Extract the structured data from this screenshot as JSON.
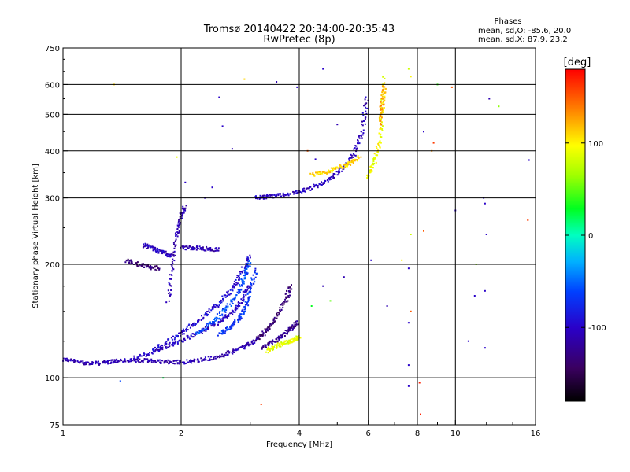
{
  "chart_data": {
    "type": "scatter",
    "title": "Tromsø 20140422 20:34:00-20:35:43",
    "subtitle": "RwPretec (8p)",
    "xlabel": "Frequency [MHz]",
    "ylabel": "Stationary phase Virtual Height [km]",
    "x_scale": "log",
    "y_scale": "log",
    "xlim": [
      1,
      16
    ],
    "ylim": [
      75,
      750
    ],
    "x_ticks": [
      1,
      2,
      4,
      6,
      8,
      10,
      16
    ],
    "x_tick_labels": [
      "1",
      "2",
      "4",
      "6",
      "8",
      "10",
      "16"
    ],
    "x_grid": [
      2,
      4,
      6,
      8,
      10
    ],
    "y_ticks": [
      75,
      100,
      200,
      300,
      400,
      500,
      600,
      750
    ],
    "y_tick_labels": [
      "75",
      "100",
      "200",
      "300",
      "400",
      "500",
      "600",
      "750"
    ],
    "y_grid": [
      100,
      200,
      300,
      400,
      500,
      600
    ],
    "grid": true,
    "stats": {
      "heading": "Phases",
      "line_o": "mean, sd,O: -85.6, 20.0",
      "line_x": "mean, sd,X:  87.9, 23.2"
    },
    "colorbar": {
      "label": "[deg]",
      "range": [
        -180,
        180
      ],
      "ticks": [
        100,
        0,
        -100
      ],
      "tick_labels": [
        "100",
        "0",
        "-100"
      ]
    },
    "traces": [
      {
        "x": [
          1.0,
          1.1,
          1.2,
          1.3,
          1.4,
          1.55,
          1.7,
          1.85,
          2.0,
          2.2,
          2.45,
          2.7,
          2.95,
          3.1
        ],
        "y": [
          112,
          110,
          109,
          110,
          111,
          111,
          111,
          110,
          110,
          111,
          113,
          117,
          122,
          126
        ],
        "phase": -110
      },
      {
        "x": [
          1.5,
          1.7,
          1.9,
          2.1,
          2.3,
          2.5,
          2.7,
          2.85,
          3.0
        ],
        "y": [
          112,
          117,
          123,
          128,
          134,
          141,
          149,
          160,
          178
        ],
        "phase": -100
      },
      {
        "x": [
          1.7,
          1.9,
          2.1,
          2.3,
          2.5,
          2.7,
          2.85,
          3.0
        ],
        "y": [
          118,
          127,
          136,
          146,
          158,
          172,
          190,
          210
        ],
        "phase": -95
      },
      {
        "x": [
          2.2,
          2.4,
          2.6,
          2.8,
          2.9,
          3.0
        ],
        "y": [
          131,
          140,
          152,
          168,
          185,
          205
        ],
        "phase": -60
      },
      {
        "x": [
          2.5,
          2.65,
          2.8,
          2.9,
          3.0,
          3.1
        ],
        "y": [
          130,
          136,
          143,
          152,
          168,
          196
        ],
        "phase": -70
      },
      {
        "x": [
          1.85,
          1.9,
          1.95,
          2.0,
          2.05
        ],
        "y": [
          160,
          200,
          240,
          270,
          285
        ],
        "phase": -110
      },
      {
        "x": [
          1.6,
          1.7,
          1.8,
          1.9
        ],
        "y": [
          225,
          220,
          215,
          210
        ],
        "phase": -105
      },
      {
        "x": [
          1.45,
          1.55,
          1.65,
          1.75
        ],
        "y": [
          205,
          200,
          197,
          195
        ],
        "phase": -135
      },
      {
        "x": [
          2.0,
          2.15,
          2.3,
          2.5
        ],
        "y": [
          222,
          221,
          220,
          219
        ],
        "phase": -110
      },
      {
        "x": [
          3.1,
          3.3,
          3.5,
          3.7,
          3.8
        ],
        "y": [
          125,
          133,
          145,
          160,
          175
        ],
        "phase": -135
      },
      {
        "x": [
          3.2,
          3.4,
          3.6,
          3.8,
          3.95
        ],
        "y": [
          120,
          124,
          128,
          135,
          140
        ],
        "phase": -125
      },
      {
        "x": [
          3.3,
          3.5,
          3.7,
          3.9,
          4.0
        ],
        "y": [
          118,
          121,
          124,
          126,
          128
        ],
        "phase": 90
      },
      {
        "x": [
          3.1,
          3.3,
          3.6,
          4.0,
          4.4,
          4.8,
          5.2,
          5.5,
          5.8,
          5.95
        ],
        "y": [
          300,
          302,
          305,
          312,
          322,
          338,
          360,
          390,
          450,
          560
        ],
        "phase": -105
      },
      {
        "x": [
          4.3,
          4.7,
          5.1,
          5.4,
          5.7
        ],
        "y": [
          345,
          352,
          362,
          372,
          385
        ],
        "phase": 110
      },
      {
        "x": [
          6.0,
          6.2,
          6.4,
          6.5,
          6.6
        ],
        "y": [
          340,
          370,
          420,
          500,
          630
        ],
        "phase": 95
      },
      {
        "x": [
          6.4,
          6.5,
          6.6
        ],
        "y": [
          470,
          530,
          600
        ],
        "phase": 125
      }
    ],
    "scattered_points": [
      {
        "x": 1.35,
        "y": 600,
        "phase": 110
      },
      {
        "x": 2.05,
        "y": 330,
        "phase": -100
      },
      {
        "x": 2.5,
        "y": 555,
        "phase": -100
      },
      {
        "x": 2.55,
        "y": 465,
        "phase": -100
      },
      {
        "x": 2.7,
        "y": 405,
        "phase": -110
      },
      {
        "x": 3.5,
        "y": 610,
        "phase": -110
      },
      {
        "x": 3.95,
        "y": 590,
        "phase": -100
      },
      {
        "x": 4.6,
        "y": 660,
        "phase": -100
      },
      {
        "x": 4.2,
        "y": 400,
        "phase": 150
      },
      {
        "x": 4.4,
        "y": 380,
        "phase": -100
      },
      {
        "x": 5.0,
        "y": 470,
        "phase": -110
      },
      {
        "x": 7.6,
        "y": 660,
        "phase": 80
      },
      {
        "x": 7.7,
        "y": 630,
        "phase": 100
      },
      {
        "x": 8.3,
        "y": 450,
        "phase": -100
      },
      {
        "x": 8.8,
        "y": 420,
        "phase": 160
      },
      {
        "x": 8.7,
        "y": 400,
        "phase": 130
      },
      {
        "x": 9.0,
        "y": 600,
        "phase": 40
      },
      {
        "x": 9.8,
        "y": 590,
        "phase": 150
      },
      {
        "x": 12.2,
        "y": 550,
        "phase": -110
      },
      {
        "x": 12.9,
        "y": 525,
        "phase": 60
      },
      {
        "x": 15.4,
        "y": 378,
        "phase": -100
      },
      {
        "x": 11.8,
        "y": 300,
        "phase": -100
      },
      {
        "x": 11.9,
        "y": 290,
        "phase": -100
      },
      {
        "x": 10.0,
        "y": 278,
        "phase": -100
      },
      {
        "x": 15.3,
        "y": 262,
        "phase": 160
      },
      {
        "x": 12.0,
        "y": 240,
        "phase": -100
      },
      {
        "x": 11.3,
        "y": 200,
        "phase": 60
      },
      {
        "x": 7.7,
        "y": 240,
        "phase": 80
      },
      {
        "x": 8.3,
        "y": 245,
        "phase": 150
      },
      {
        "x": 6.1,
        "y": 205,
        "phase": -100
      },
      {
        "x": 7.3,
        "y": 205,
        "phase": 100
      },
      {
        "x": 7.6,
        "y": 195,
        "phase": -100
      },
      {
        "x": 7.7,
        "y": 150,
        "phase": 150
      },
      {
        "x": 7.6,
        "y": 140,
        "phase": -100
      },
      {
        "x": 6.7,
        "y": 155,
        "phase": -110
      },
      {
        "x": 11.2,
        "y": 165,
        "phase": -100
      },
      {
        "x": 11.9,
        "y": 170,
        "phase": -100
      },
      {
        "x": 11.9,
        "y": 120,
        "phase": -100
      },
      {
        "x": 10.8,
        "y": 125,
        "phase": -100
      },
      {
        "x": 7.6,
        "y": 108,
        "phase": -100
      },
      {
        "x": 7.6,
        "y": 95,
        "phase": -100
      },
      {
        "x": 8.1,
        "y": 97,
        "phase": 170
      },
      {
        "x": 8.15,
        "y": 80,
        "phase": 170
      },
      {
        "x": 3.2,
        "y": 85,
        "phase": 160
      },
      {
        "x": 1.4,
        "y": 98,
        "phase": -60
      },
      {
        "x": 1.8,
        "y": 100,
        "phase": 20
      },
      {
        "x": 5.2,
        "y": 185,
        "phase": -110
      },
      {
        "x": 4.6,
        "y": 175,
        "phase": -110
      },
      {
        "x": 4.3,
        "y": 155,
        "phase": 30
      },
      {
        "x": 4.8,
        "y": 160,
        "phase": 50
      },
      {
        "x": 2.3,
        "y": 300,
        "phase": -100
      },
      {
        "x": 2.4,
        "y": 320,
        "phase": -100
      },
      {
        "x": 1.95,
        "y": 385,
        "phase": 90
      },
      {
        "x": 2.9,
        "y": 620,
        "phase": 110
      }
    ]
  }
}
